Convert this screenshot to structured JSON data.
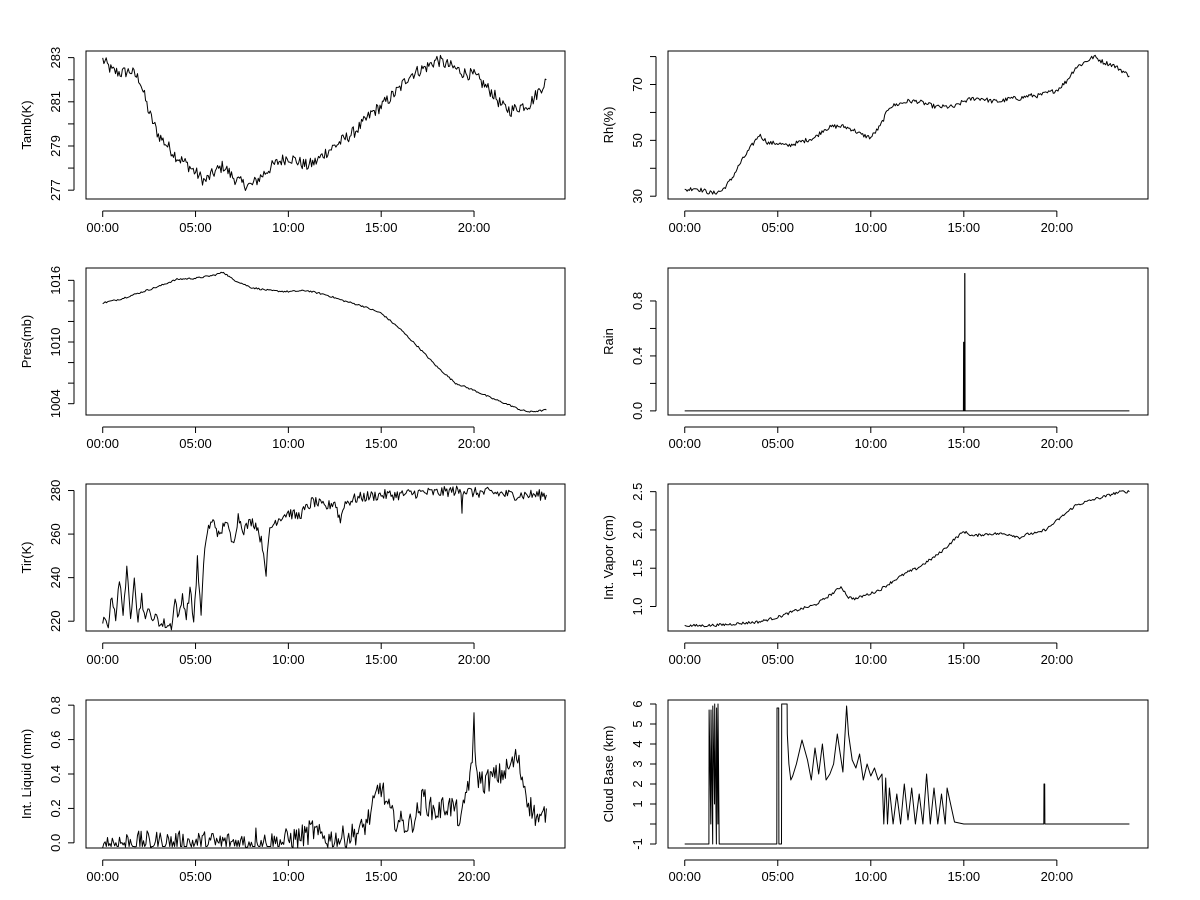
{
  "chart_data": [
    {
      "type": "line",
      "ylabel": "Tamb(K)",
      "x_tick_labels": [
        "00:00",
        "05:00",
        "10:00",
        "15:00",
        "20:00"
      ],
      "x_ticks_hours": [
        0,
        5,
        10,
        15,
        20
      ],
      "xlim_hours": [
        -0.9,
        24.9
      ],
      "ylim": [
        276.6,
        283.3
      ],
      "y_ticks": [
        277,
        278,
        279,
        280,
        281,
        282,
        283
      ],
      "y_tick_labels": [
        "277",
        "",
        "279",
        "",
        "281",
        "",
        "283"
      ],
      "noise": 0.28,
      "series": [
        {
          "x": [
            0.0,
            0.5,
            1.0,
            1.5,
            2.0,
            2.5,
            3.0,
            3.5,
            4.0,
            4.5,
            5.0,
            5.5,
            6.0,
            6.5,
            7.0,
            7.5,
            8.0,
            8.5,
            9.0,
            9.5,
            10.0,
            10.5,
            11.0,
            11.5,
            12.0,
            12.5,
            13.0,
            13.5,
            14.0,
            14.5,
            15.0,
            15.5,
            16.0,
            16.5,
            17.0,
            17.5,
            18.0,
            18.5,
            19.0,
            19.5,
            20.0,
            20.5,
            21.0,
            21.5,
            22.0,
            22.5,
            23.0,
            23.5,
            23.9
          ],
          "y": [
            282.9,
            282.4,
            282.3,
            282.4,
            282.0,
            280.5,
            279.5,
            279.0,
            278.5,
            278.2,
            277.8,
            277.4,
            277.8,
            278.1,
            277.6,
            277.3,
            277.2,
            277.6,
            278.0,
            278.3,
            278.5,
            278.3,
            278.1,
            278.3,
            278.7,
            279.0,
            279.3,
            279.6,
            280.0,
            280.5,
            280.8,
            281.2,
            281.6,
            282.2,
            282.4,
            282.6,
            282.9,
            282.7,
            282.5,
            282.3,
            282.2,
            281.8,
            281.4,
            280.8,
            280.6,
            280.8,
            280.9,
            281.5,
            282.0
          ]
        }
      ]
    },
    {
      "type": "line",
      "ylabel": "Rh(%)",
      "x_tick_labels": [
        "00:00",
        "05:00",
        "10:00",
        "15:00",
        "20:00"
      ],
      "x_ticks_hours": [
        0,
        5,
        10,
        15,
        20
      ],
      "xlim_hours": [
        -0.9,
        24.9
      ],
      "ylim": [
        29,
        82
      ],
      "y_ticks": [
        30,
        40,
        50,
        60,
        70,
        80
      ],
      "y_tick_labels": [
        "30",
        "",
        "50",
        "",
        "70",
        ""
      ],
      "noise": 0.8,
      "series": [
        {
          "x": [
            0.0,
            0.5,
            1.0,
            1.5,
            2.0,
            2.5,
            3.0,
            3.5,
            4.0,
            4.5,
            5.0,
            5.5,
            6.0,
            6.5,
            7.0,
            7.5,
            8.0,
            8.5,
            9.0,
            9.5,
            10.0,
            10.5,
            11.0,
            11.5,
            12.0,
            12.5,
            13.0,
            13.5,
            14.0,
            14.5,
            15.0,
            15.5,
            16.0,
            16.5,
            17.0,
            17.5,
            18.0,
            18.5,
            19.0,
            19.5,
            20.0,
            20.5,
            21.0,
            21.5,
            22.0,
            22.5,
            23.0,
            23.5,
            23.9
          ],
          "y": [
            32,
            33,
            32,
            31,
            32,
            36,
            42,
            47,
            52,
            49,
            49,
            48,
            49,
            50,
            51,
            54,
            55,
            55,
            54,
            52,
            51,
            55,
            62,
            63,
            64,
            64,
            63,
            62,
            62,
            62,
            64,
            65,
            65,
            64,
            64,
            65,
            65,
            66,
            66,
            67,
            68,
            71,
            76,
            78,
            80,
            78,
            77,
            75,
            73
          ]
        }
      ]
    },
    {
      "type": "line",
      "ylabel": "Pres(mb)",
      "x_tick_labels": [
        "00:00",
        "05:00",
        "10:00",
        "15:00",
        "20:00"
      ],
      "x_ticks_hours": [
        0,
        5,
        10,
        15,
        20
      ],
      "xlim_hours": [
        -0.9,
        24.9
      ],
      "ylim": [
        1002.9,
        1017.2
      ],
      "y_ticks": [
        1004,
        1006,
        1008,
        1010,
        1012,
        1014,
        1016
      ],
      "y_tick_labels": [
        "1004",
        "",
        "",
        "1010",
        "",
        "",
        "1016"
      ],
      "noise": 0.08,
      "series": [
        {
          "x": [
            0.0,
            1.0,
            2.0,
            3.0,
            4.0,
            5.0,
            6.0,
            6.5,
            7.0,
            8.0,
            9.0,
            10.0,
            11.0,
            12.0,
            13.0,
            14.0,
            15.0,
            16.0,
            17.0,
            18.0,
            19.0,
            20.0,
            21.0,
            22.0,
            22.5,
            23.0,
            23.5,
            23.9
          ],
          "y": [
            1013.8,
            1014.2,
            1014.8,
            1015.4,
            1016.1,
            1016.2,
            1016.5,
            1016.8,
            1016.1,
            1015.3,
            1015.0,
            1014.9,
            1015.0,
            1014.6,
            1014.0,
            1013.5,
            1012.8,
            1011.3,
            1009.5,
            1007.6,
            1006.0,
            1005.3,
            1004.5,
            1003.8,
            1003.4,
            1003.2,
            1003.3,
            1003.4
          ]
        }
      ]
    },
    {
      "type": "line",
      "ylabel": "Rain",
      "x_tick_labels": [
        "00:00",
        "05:00",
        "10:00",
        "15:00",
        "20:00"
      ],
      "x_ticks_hours": [
        0,
        5,
        10,
        15,
        20
      ],
      "xlim_hours": [
        -0.9,
        24.9
      ],
      "ylim": [
        -0.03,
        1.04
      ],
      "y_ticks": [
        0.0,
        0.2,
        0.4,
        0.6,
        0.8
      ],
      "y_tick_labels": [
        "0.0",
        "",
        "0.4",
        "",
        "0.8"
      ],
      "noise": 0,
      "series": [
        {
          "x": [
            0.0,
            14.98,
            14.99,
            15.0,
            15.01,
            15.04,
            15.05,
            15.06,
            15.07,
            23.9
          ],
          "y": [
            0,
            0,
            0.5,
            0.5,
            0,
            0,
            1.0,
            1.0,
            0,
            0
          ]
        }
      ]
    },
    {
      "type": "line",
      "ylabel": "Tir(K)",
      "x_tick_labels": [
        "00:00",
        "05:00",
        "10:00",
        "15:00",
        "20:00"
      ],
      "x_ticks_hours": [
        0,
        5,
        10,
        15,
        20
      ],
      "xlim_hours": [
        -0.9,
        24.9
      ],
      "ylim": [
        215.5,
        283
      ],
      "y_ticks": [
        220,
        240,
        260,
        280
      ],
      "y_tick_labels": [
        "220",
        "240",
        "260",
        "280"
      ],
      "noise": 2.5,
      "series": [
        {
          "x": [
            0.0,
            0.3,
            0.5,
            0.7,
            0.9,
            1.1,
            1.3,
            1.5,
            1.7,
            1.9,
            2.1,
            2.3,
            2.5,
            2.7,
            2.9,
            3.1,
            3.3,
            3.5,
            3.7,
            3.9,
            4.1,
            4.3,
            4.5,
            4.7,
            4.9,
            5.1,
            5.3,
            5.5,
            5.7,
            6.0,
            6.3,
            6.6,
            7.0,
            7.3,
            7.6,
            8.0,
            8.3,
            8.6,
            8.8,
            9.0,
            9.3,
            9.6,
            10.0,
            10.5,
            11.0,
            11.3,
            11.6,
            12.0,
            12.5,
            12.8,
            13.0,
            13.5,
            14.0,
            15.0,
            16.0,
            17.0,
            18.0,
            19.0,
            19.3,
            19.35,
            19.4,
            20.0,
            21.0,
            22.0,
            23.0,
            23.9
          ],
          "y": [
            220,
            219,
            232,
            222,
            238,
            225,
            243,
            221,
            242,
            220,
            232,
            219,
            228,
            218,
            224,
            218,
            219,
            218,
            218,
            230,
            221,
            232,
            222,
            235,
            220,
            248,
            222,
            255,
            263,
            266,
            258,
            267,
            255,
            268,
            262,
            266,
            264,
            255,
            243,
            262,
            266,
            268,
            270,
            268,
            272,
            275,
            274,
            272,
            275,
            266,
            274,
            276,
            277,
            278,
            278,
            279,
            279,
            280,
            279,
            272,
            280,
            279,
            279,
            278,
            278,
            278
          ]
        }
      ]
    },
    {
      "type": "line",
      "ylabel": "Int. Vapor (cm)",
      "x_tick_labels": [
        "00:00",
        "05:00",
        "10:00",
        "15:00",
        "20:00"
      ],
      "x_ticks_hours": [
        0,
        5,
        10,
        15,
        20
      ],
      "xlim_hours": [
        -0.9,
        24.9
      ],
      "ylim": [
        0.68,
        2.6
      ],
      "y_ticks": [
        1.0,
        1.5,
        2.0,
        2.5
      ],
      "y_tick_labels": [
        "1.0",
        "1.5",
        "2.0",
        "2.5"
      ],
      "noise": 0.018,
      "series": [
        {
          "x": [
            0.0,
            1.0,
            2.0,
            3.0,
            4.0,
            5.0,
            6.0,
            7.0,
            7.5,
            8.0,
            8.4,
            8.8,
            9.2,
            9.6,
            10.0,
            10.5,
            11.0,
            11.5,
            12.0,
            12.5,
            13.0,
            13.5,
            14.0,
            14.5,
            15.0,
            15.5,
            16.0,
            16.5,
            17.0,
            17.5,
            18.0,
            18.5,
            19.0,
            19.5,
            20.0,
            20.5,
            21.0,
            21.5,
            22.0,
            22.5,
            23.0,
            23.5,
            23.9
          ],
          "y": [
            0.75,
            0.75,
            0.76,
            0.78,
            0.8,
            0.86,
            0.95,
            1.02,
            1.1,
            1.18,
            1.26,
            1.12,
            1.1,
            1.14,
            1.17,
            1.22,
            1.3,
            1.38,
            1.45,
            1.5,
            1.58,
            1.66,
            1.76,
            1.88,
            1.98,
            1.92,
            1.94,
            1.95,
            1.95,
            1.94,
            1.9,
            1.95,
            1.96,
            2.02,
            2.12,
            2.22,
            2.32,
            2.36,
            2.4,
            2.43,
            2.47,
            2.5,
            2.5
          ]
        }
      ]
    },
    {
      "type": "line",
      "ylabel": "Int. Liquid (mm)",
      "x_tick_labels": [
        "00:00",
        "05:00",
        "10:00",
        "15:00",
        "20:00"
      ],
      "x_ticks_hours": [
        0,
        5,
        10,
        15,
        20
      ],
      "xlim_hours": [
        -0.9,
        24.9
      ],
      "ylim": [
        -0.03,
        0.83
      ],
      "y_ticks": [
        0.0,
        0.2,
        0.4,
        0.6,
        0.8
      ],
      "y_tick_labels": [
        "0.0",
        "0.2",
        "0.4",
        "0.6",
        "0.8"
      ],
      "noise": 0.07,
      "series": [
        {
          "x": [
            0.0,
            8.2,
            8.3,
            8.4,
            9.5,
            10.0,
            10.5,
            11.0,
            11.3,
            11.6,
            12.0,
            12.5,
            13.0,
            13.5,
            14.0,
            14.5,
            14.8,
            15.0,
            15.3,
            15.6,
            16.0,
            16.5,
            17.0,
            17.3,
            17.6,
            18.0,
            18.5,
            19.0,
            19.3,
            19.6,
            19.9,
            20.0,
            20.1,
            20.5,
            21.0,
            21.5,
            22.0,
            22.3,
            22.6,
            23.0,
            23.3,
            23.6,
            23.9
          ],
          "y": [
            0.0,
            0.0,
            0.06,
            0.0,
            0.0,
            0.02,
            0.03,
            0.05,
            0.08,
            0.04,
            0.03,
            0.02,
            0.03,
            0.05,
            0.08,
            0.18,
            0.3,
            0.33,
            0.22,
            0.15,
            0.12,
            0.1,
            0.18,
            0.28,
            0.2,
            0.18,
            0.22,
            0.2,
            0.1,
            0.32,
            0.42,
            0.78,
            0.4,
            0.35,
            0.38,
            0.4,
            0.45,
            0.5,
            0.38,
            0.22,
            0.16,
            0.12,
            0.2
          ]
        }
      ]
    },
    {
      "type": "line",
      "ylabel": "Cloud Base (km)",
      "x_tick_labels": [
        "00:00",
        "05:00",
        "10:00",
        "15:00",
        "20:00"
      ],
      "x_ticks_hours": [
        0,
        5,
        10,
        15,
        20
      ],
      "xlim_hours": [
        -0.9,
        24.9
      ],
      "ylim": [
        -1.2,
        6.2
      ],
      "y_ticks": [
        -1,
        0,
        1,
        2,
        3,
        4,
        5,
        6
      ],
      "y_tick_labels": [
        "-1",
        "",
        "1",
        "2",
        "3",
        "4",
        "5",
        "6"
      ],
      "noise": 0,
      "series": [
        {
          "x": [
            0.0,
            1.3,
            1.31,
            1.4,
            1.41,
            1.5,
            1.51,
            1.6,
            1.61,
            1.7,
            1.71,
            1.78,
            1.79,
            1.85,
            1.86,
            4.95,
            4.96,
            5.05,
            5.06,
            5.2,
            5.21,
            5.5,
            5.51,
            5.6,
            5.7,
            5.8,
            6.0,
            6.3,
            6.6,
            6.8,
            7.0,
            7.2,
            7.4,
            7.6,
            7.8,
            8.0,
            8.2,
            8.5,
            8.7,
            8.8,
            9.0,
            9.2,
            9.4,
            9.6,
            9.8,
            10.0,
            10.2,
            10.4,
            10.6,
            10.7,
            10.8,
            10.9,
            11.0,
            11.2,
            11.4,
            11.6,
            11.8,
            12.0,
            12.2,
            12.4,
            12.6,
            12.8,
            13.0,
            13.2,
            13.4,
            13.6,
            13.8,
            14.0,
            14.1,
            14.5,
            15.0,
            16.0,
            17.0,
            18.0,
            19.0,
            19.3,
            19.31,
            19.35,
            19.36,
            20.0,
            21.0,
            22.0,
            23.0,
            23.9
          ],
          "y": [
            -1,
            -1,
            5.7,
            0.0,
            5.7,
            -1,
            5.9,
            1.0,
            6.0,
            -1,
            5.8,
            0.0,
            6.0,
            -1,
            -1,
            -1,
            5.8,
            5.8,
            -1,
            -1,
            6.0,
            6.0,
            4.5,
            3.0,
            2.2,
            2.4,
            3.0,
            4.2,
            3.2,
            2.2,
            3.8,
            2.5,
            4.0,
            2.2,
            2.5,
            3.0,
            4.5,
            2.6,
            5.9,
            4.5,
            3.2,
            2.8,
            3.5,
            2.2,
            3.0,
            2.4,
            2.8,
            2.2,
            2.5,
            0.0,
            2.3,
            0.0,
            1.8,
            0.0,
            1.5,
            0.0,
            2.0,
            0.2,
            1.8,
            0.0,
            1.5,
            0.0,
            2.5,
            0.0,
            1.8,
            0.0,
            1.5,
            0.0,
            1.8,
            0.1,
            0.0,
            0.0,
            0.0,
            0.0,
            0.0,
            0.0,
            2.0,
            2.0,
            0.0,
            0.0,
            0.0,
            0.0,
            0.0,
            0.0
          ]
        }
      ]
    }
  ]
}
